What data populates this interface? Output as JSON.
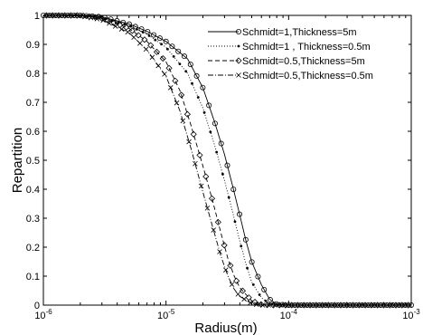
{
  "chart_data": {
    "type": "line",
    "x_scale": "log",
    "xlim": [
      1e-06,
      0.001
    ],
    "ylim": [
      0,
      1
    ],
    "xlabel": "Radius(m)",
    "ylabel": "Repartition",
    "grid": false,
    "legend_position": "top-right",
    "x_ticks": [
      {
        "value": 1e-06,
        "base": "10",
        "exp": "-6"
      },
      {
        "value": 1e-05,
        "base": "10",
        "exp": "-5"
      },
      {
        "value": 0.0001,
        "base": "10",
        "exp": "-4"
      },
      {
        "value": 0.001,
        "base": "10",
        "exp": "-3"
      }
    ],
    "y_ticks": [
      {
        "value": 0,
        "label": "0"
      },
      {
        "value": 0.1,
        "label": "0.1"
      },
      {
        "value": 0.2,
        "label": "0.2"
      },
      {
        "value": 0.3,
        "label": "0.3"
      },
      {
        "value": 0.4,
        "label": "0.4"
      },
      {
        "value": 0.5,
        "label": "0.5"
      },
      {
        "value": 0.6,
        "label": "0.6"
      },
      {
        "value": 0.7,
        "label": "0.7"
      },
      {
        "value": 0.8,
        "label": "0.8"
      },
      {
        "value": 0.9,
        "label": "0.9"
      },
      {
        "value": 1,
        "label": "1"
      }
    ],
    "series": [
      {
        "name": "Schmidt=1,Thickness=5m",
        "line_style": "solid",
        "marker": "circle",
        "points": [
          [
            1e-06,
            1.0
          ],
          [
            2e-06,
            1.0
          ],
          [
            3e-06,
            0.995
          ],
          [
            5e-06,
            0.97
          ],
          [
            7e-06,
            0.945
          ],
          [
            1e-05,
            0.91
          ],
          [
            1.5e-05,
            0.85
          ],
          [
            2e-05,
            0.75
          ],
          [
            2.5e-05,
            0.63
          ],
          [
            3e-05,
            0.52
          ],
          [
            3.5e-05,
            0.41
          ],
          [
            4e-05,
            0.31
          ],
          [
            4.5e-05,
            0.22
          ],
          [
            5e-05,
            0.15
          ],
          [
            6e-05,
            0.07
          ],
          [
            7e-05,
            0.02
          ],
          [
            8e-05,
            0.003
          ],
          [
            0.0001,
            0.0
          ],
          [
            0.001,
            0.0
          ]
        ]
      },
      {
        "name": "Schmidt=1 , Thickness=0.5m",
        "line_style": "dotted",
        "marker": "dot",
        "points": [
          [
            1e-06,
            1.0
          ],
          [
            2e-06,
            1.0
          ],
          [
            3e-06,
            0.993
          ],
          [
            5e-06,
            0.965
          ],
          [
            7e-06,
            0.935
          ],
          [
            1e-05,
            0.89
          ],
          [
            1.5e-05,
            0.8
          ],
          [
            2e-05,
            0.68
          ],
          [
            2.5e-05,
            0.55
          ],
          [
            3e-05,
            0.43
          ],
          [
            3.5e-05,
            0.32
          ],
          [
            4e-05,
            0.22
          ],
          [
            4.5e-05,
            0.14
          ],
          [
            5e-05,
            0.08
          ],
          [
            6e-05,
            0.025
          ],
          [
            7e-05,
            0.005
          ],
          [
            8e-05,
            0.0
          ],
          [
            0.001,
            0.0
          ]
        ]
      },
      {
        "name": "Schmidt=0.5,Thickness=5m",
        "line_style": "dashed",
        "marker": "diamond",
        "points": [
          [
            1e-06,
            1.0
          ],
          [
            2e-06,
            1.0
          ],
          [
            3e-06,
            0.99
          ],
          [
            5e-06,
            0.955
          ],
          [
            7e-06,
            0.91
          ],
          [
            1e-05,
            0.84
          ],
          [
            1.3e-05,
            0.74
          ],
          [
            1.6e-05,
            0.62
          ],
          [
            2e-05,
            0.48
          ],
          [
            2.4e-05,
            0.36
          ],
          [
            2.8e-05,
            0.25
          ],
          [
            3.2e-05,
            0.16
          ],
          [
            3.6e-05,
            0.1
          ],
          [
            4e-05,
            0.06
          ],
          [
            5e-05,
            0.015
          ],
          [
            6e-05,
            0.002
          ],
          [
            7e-05,
            0.0
          ],
          [
            0.001,
            0.0
          ]
        ]
      },
      {
        "name": "Schmidt=0.5,Thickness=0.5m",
        "line_style": "dashdot",
        "marker": "cross",
        "points": [
          [
            1e-06,
            1.0
          ],
          [
            2e-06,
            0.998
          ],
          [
            3e-06,
            0.985
          ],
          [
            5e-06,
            0.94
          ],
          [
            7e-06,
            0.88
          ],
          [
            1e-05,
            0.79
          ],
          [
            1.3e-05,
            0.67
          ],
          [
            1.6e-05,
            0.54
          ],
          [
            2e-05,
            0.39
          ],
          [
            2.4e-05,
            0.27
          ],
          [
            2.8e-05,
            0.17
          ],
          [
            3.2e-05,
            0.1
          ],
          [
            3.6e-05,
            0.055
          ],
          [
            4e-05,
            0.03
          ],
          [
            5e-05,
            0.005
          ],
          [
            6e-05,
            0.0
          ],
          [
            0.001,
            0.0
          ]
        ]
      }
    ]
  }
}
